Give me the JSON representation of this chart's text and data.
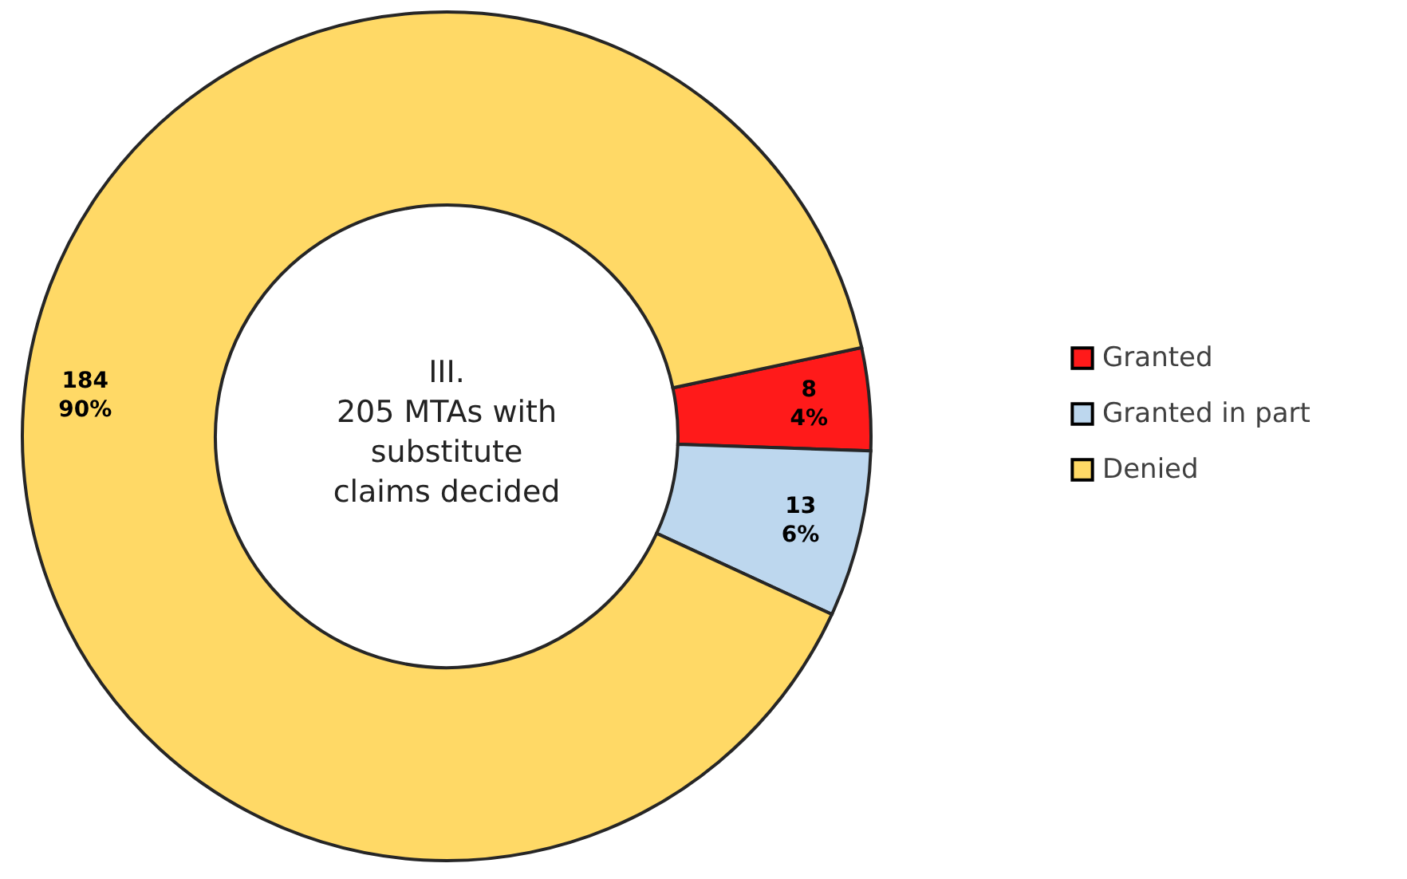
{
  "chart_data": {
    "type": "donut",
    "categories": [
      "Granted",
      "Granted in part",
      "Denied"
    ],
    "values": [
      8,
      13,
      184
    ],
    "colors": [
      "#ff1a1a",
      "#bdd7ee",
      "#ffd966"
    ],
    "value_labels": [
      "8 4%",
      "13 6%",
      "184 90%"
    ],
    "annotations": [
      "III.\n205 MTAs with\nsubstitute\nclaims decided"
    ],
    "legend": "right"
  }
}
